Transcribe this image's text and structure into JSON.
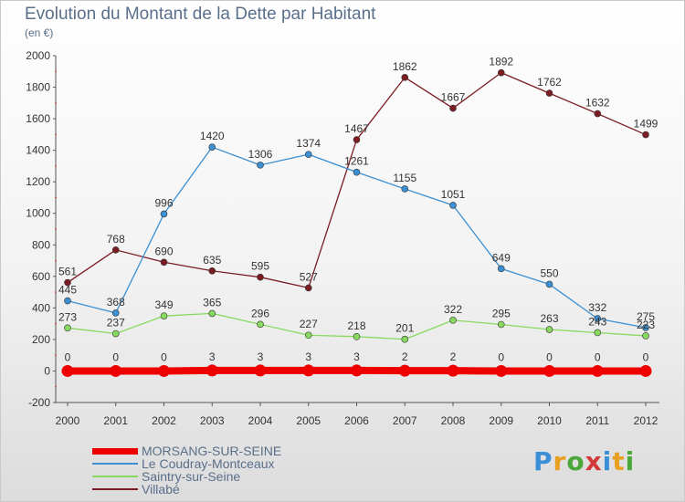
{
  "header": {
    "title": "Evolution du Montant de la Dette par Habitant",
    "subtitle": "(en €)"
  },
  "logo": {
    "text": "Proxiti"
  },
  "chart_data": {
    "type": "line",
    "title": "Evolution du Montant de la Dette par Habitant",
    "subtitle": "(en €)",
    "x": [
      "2000",
      "2001",
      "2002",
      "2003",
      "2004",
      "2005",
      "2006",
      "2007",
      "2008",
      "2009",
      "2010",
      "2011",
      "2012"
    ],
    "ylim": [
      -200,
      2000
    ],
    "yticks": [
      -200,
      0,
      200,
      400,
      600,
      800,
      1000,
      1200,
      1400,
      1600,
      1800,
      2000
    ],
    "grid": false,
    "legend_position": "bottom-left",
    "series": [
      {
        "name": "MORSANG-SUR-SEINE",
        "color": "#ee0000",
        "values": [
          0,
          0,
          0,
          3,
          3,
          3,
          3,
          2,
          2,
          0,
          0,
          0,
          0
        ]
      },
      {
        "name": "Le Coudray-Montceaux",
        "color": "#3b8fd2",
        "values": [
          445,
          368,
          996,
          1420,
          1306,
          1374,
          1261,
          1155,
          1051,
          649,
          550,
          332,
          275
        ]
      },
      {
        "name": "Saintry-sur-Seine",
        "color": "#88d960",
        "values": [
          273,
          237,
          349,
          365,
          296,
          227,
          218,
          201,
          322,
          295,
          263,
          243,
          223
        ]
      },
      {
        "name": "Villabé",
        "color": "#7a1c22",
        "values": [
          561,
          768,
          690,
          635,
          595,
          527,
          1467,
          1862,
          1667,
          1892,
          1762,
          1632,
          1499
        ]
      }
    ]
  }
}
